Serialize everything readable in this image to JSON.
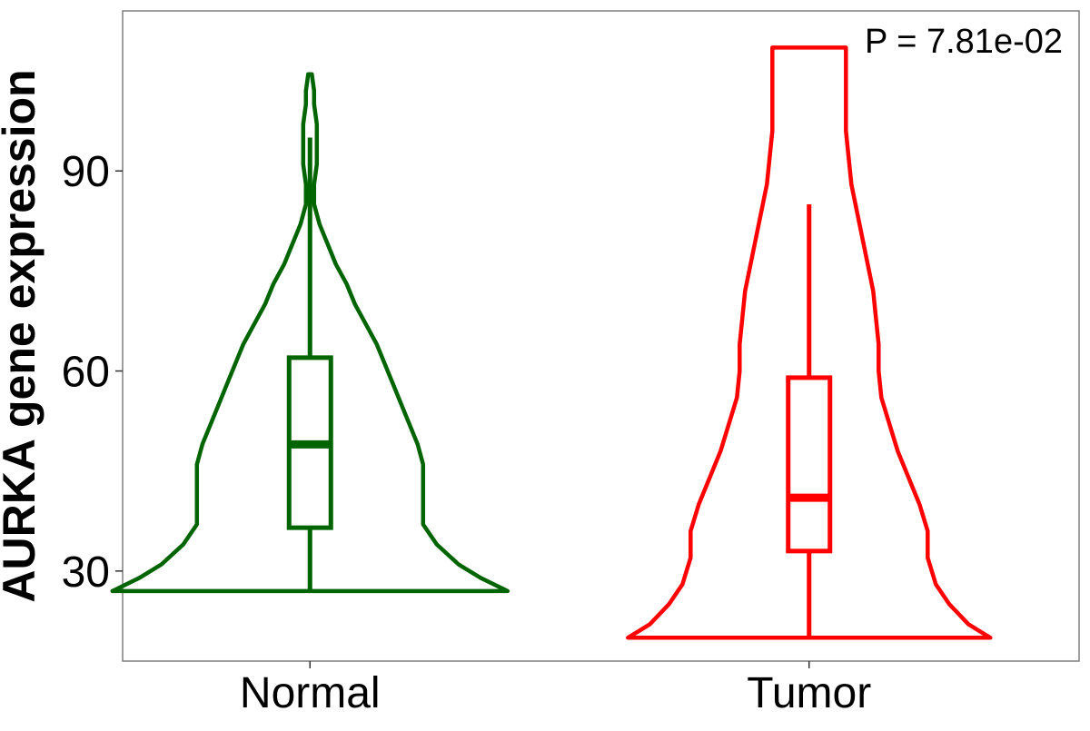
{
  "chart_data": {
    "type": "violin",
    "ylabel": "AURKA gene expression",
    "xlabel": "",
    "categories": [
      "Normal",
      "Tumor"
    ],
    "ylim": [
      16.5,
      114
    ],
    "yticks": [
      30,
      60,
      90
    ],
    "grid": false,
    "annotation": "P = 7.81e-02",
    "series": [
      {
        "name": "Normal",
        "color": "#006400",
        "box": {
          "q1": 36.5,
          "median": 49,
          "q3": 62,
          "whisker_low": 27,
          "whisker_high": 95
        },
        "violin": {
          "min": 27,
          "max": 104.5,
          "profile": [
            [
              27,
              0.51
            ],
            [
              29,
              0.41
            ],
            [
              31,
              0.33
            ],
            [
              34,
              0.25
            ],
            [
              37,
              0.2
            ],
            [
              40,
              0.2
            ],
            [
              43,
              0.2
            ],
            [
              46,
              0.2
            ],
            [
              49,
              0.18
            ],
            [
              52,
              0.15
            ],
            [
              55,
              0.12
            ],
            [
              58,
              0.09
            ],
            [
              61,
              0.06
            ],
            [
              64,
              0.03
            ],
            [
              67,
              -0.01
            ],
            [
              70,
              -0.05
            ],
            [
              73,
              -0.08
            ],
            [
              76,
              -0.12
            ],
            [
              79,
              -0.15
            ],
            [
              82,
              -0.18
            ],
            [
              85,
              -0.2
            ],
            [
              88,
              -0.2
            ],
            [
              91,
              -0.19
            ],
            [
              94,
              -0.19
            ],
            [
              97,
              -0.19
            ],
            [
              100,
              -0.2
            ],
            [
              102,
              -0.2
            ],
            [
              104.5,
              -0.21
            ]
          ]
        }
      },
      {
        "name": "Tumor",
        "color": "#ff0000",
        "box": {
          "q1": 33,
          "median": 41,
          "q3": 59,
          "whisker_low": 20,
          "whisker_high": 85
        },
        "violin": {
          "min": 20,
          "max": 108.5,
          "profile": [
            [
              20,
              0.45
            ],
            [
              22,
              0.37
            ],
            [
              25,
              0.3
            ],
            [
              28,
              0.25
            ],
            [
              32,
              0.22
            ],
            [
              36,
              0.22
            ],
            [
              40,
              0.19
            ],
            [
              44,
              0.15
            ],
            [
              48,
              0.11
            ],
            [
              52,
              0.08
            ],
            [
              56,
              0.05
            ],
            [
              60,
              0.04
            ],
            [
              64,
              0.04
            ],
            [
              68,
              0.03
            ],
            [
              72,
              0.02
            ],
            [
              76,
              0.0
            ],
            [
              80,
              -0.02
            ],
            [
              84,
              -0.04
            ],
            [
              88,
              -0.06
            ],
            [
              92,
              -0.07
            ],
            [
              96,
              -0.08
            ],
            [
              100,
              -0.08
            ],
            [
              104,
              -0.08
            ],
            [
              108.5,
              -0.08
            ]
          ]
        }
      }
    ]
  }
}
